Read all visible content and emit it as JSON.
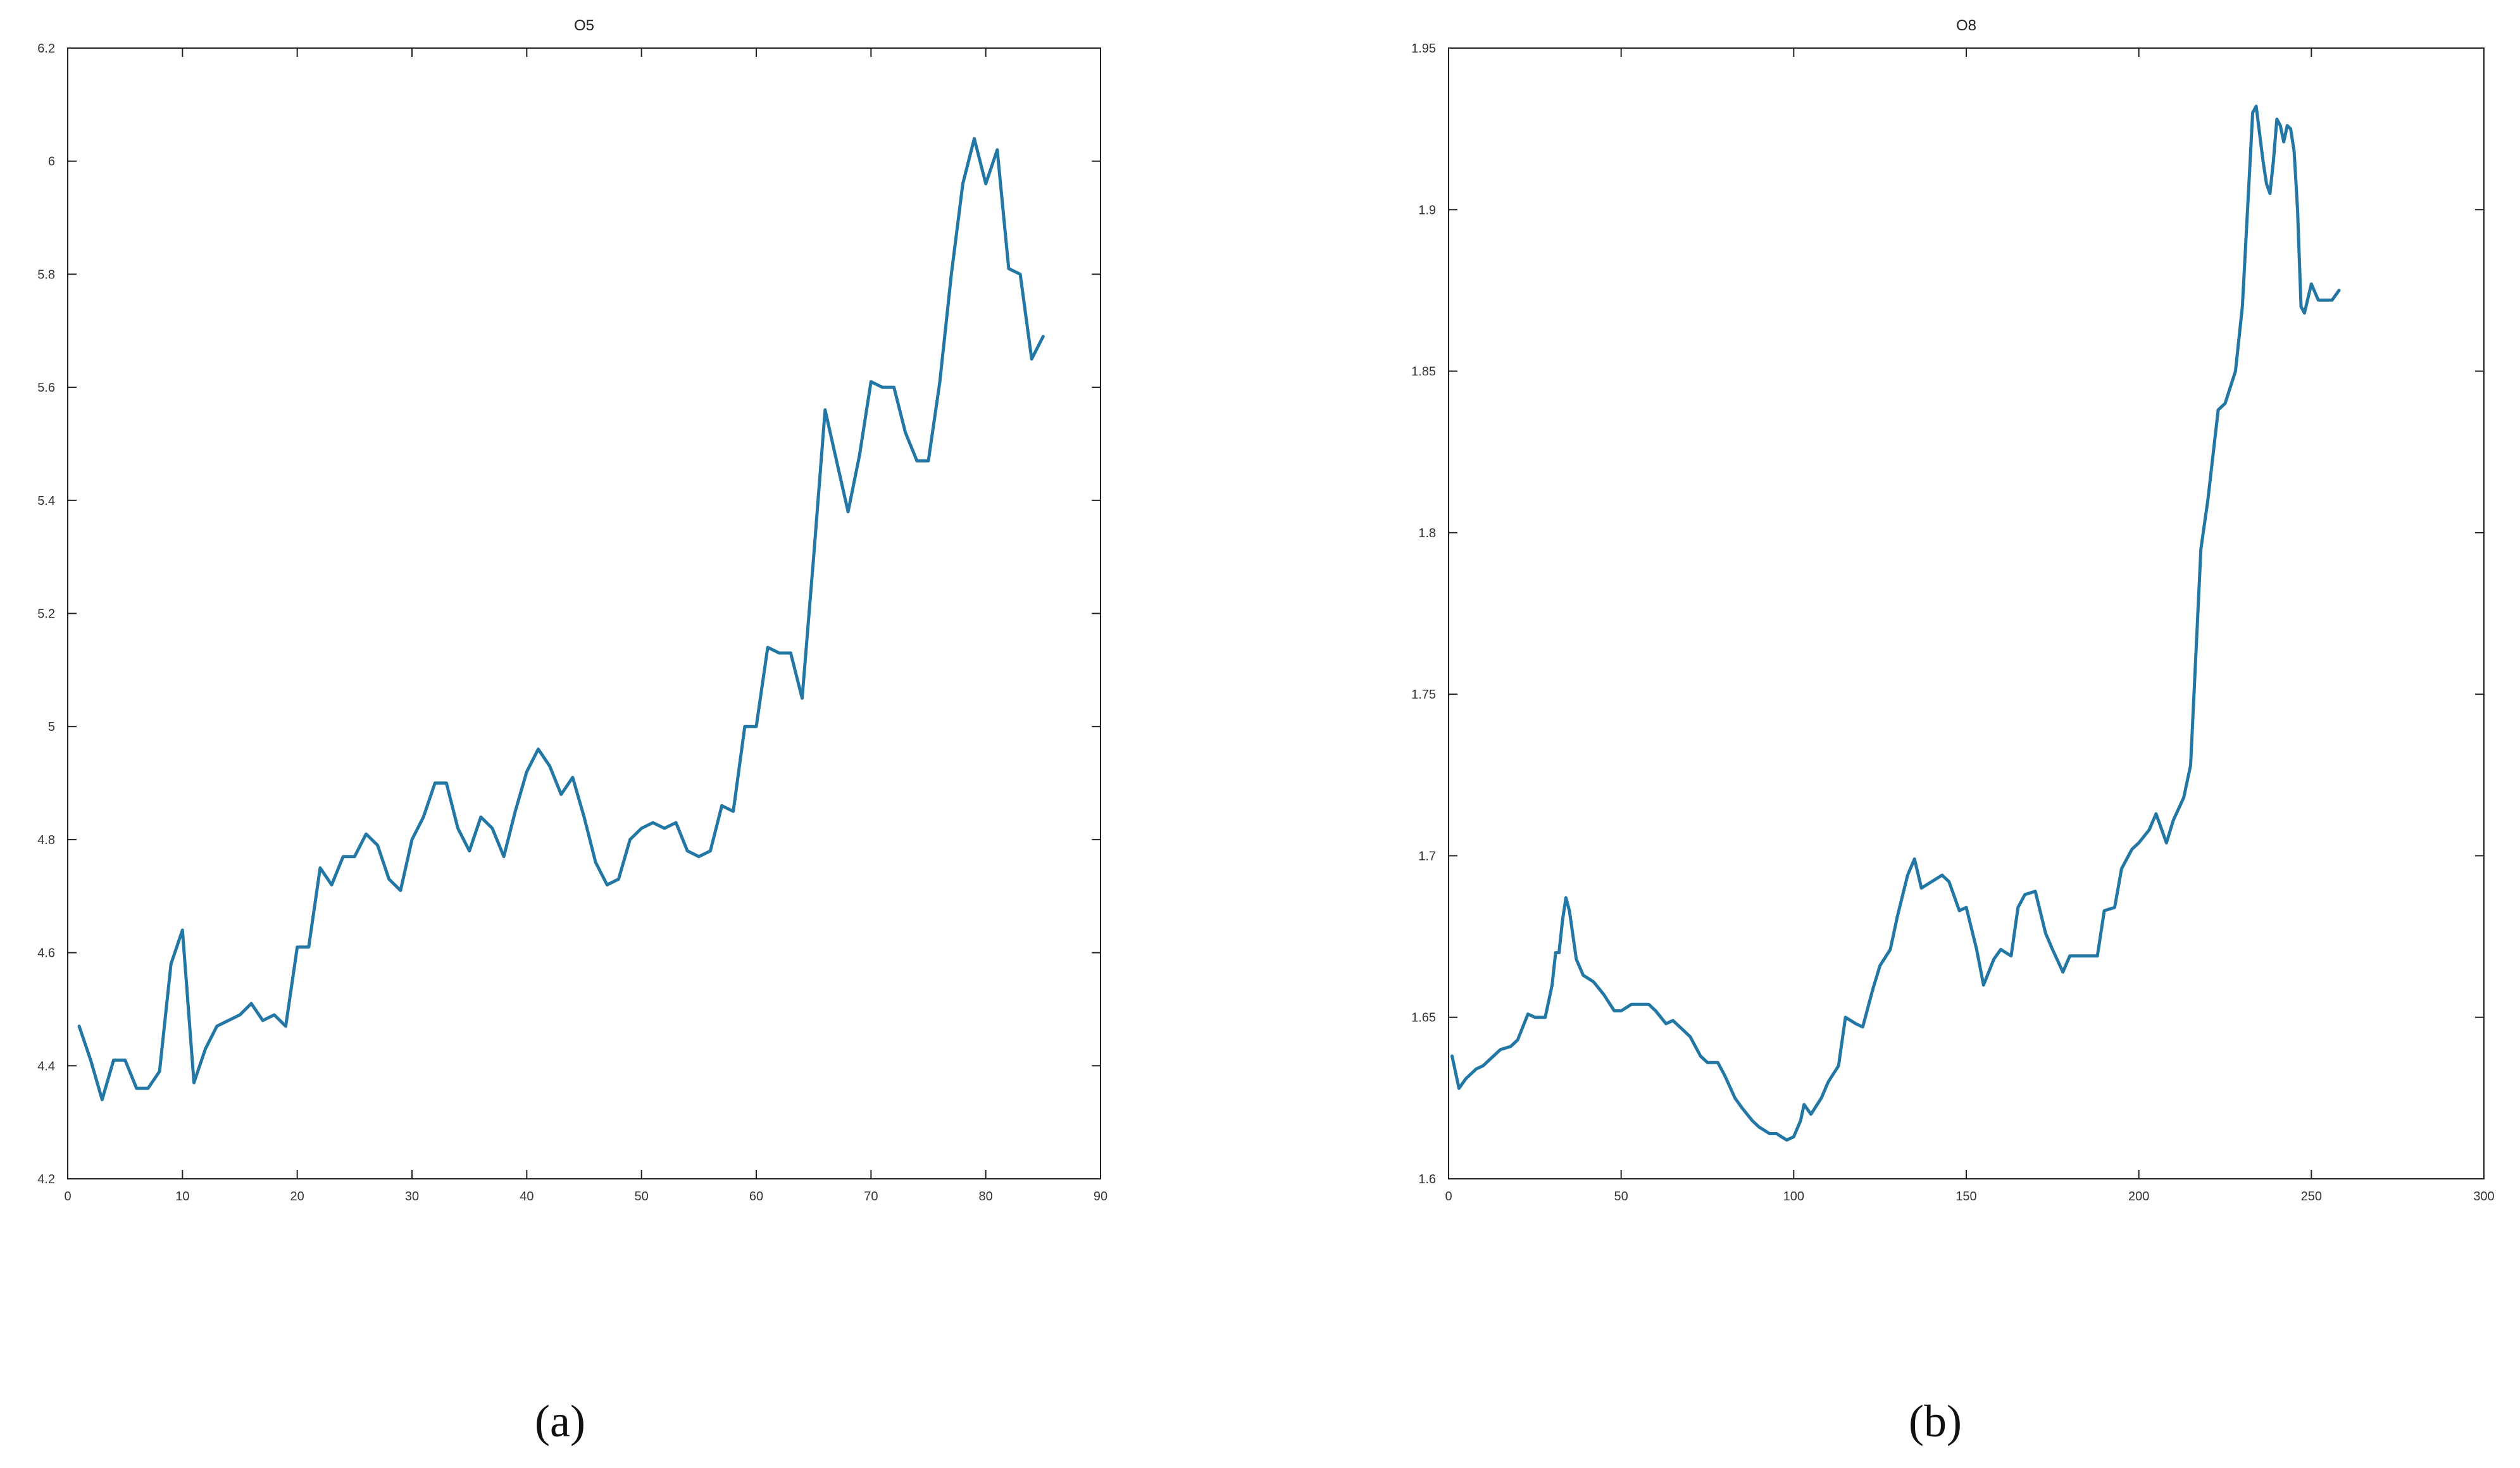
{
  "chart_data": [
    {
      "type": "line",
      "title": "O5",
      "xlabel": "",
      "ylabel": "",
      "xlim": [
        0,
        90
      ],
      "ylim": [
        4.2,
        6.2
      ],
      "x_ticks": [
        0,
        10,
        20,
        30,
        40,
        50,
        60,
        70,
        80,
        90
      ],
      "x_tick_labels": [
        "0",
        "10",
        "20",
        "30",
        "40",
        "50",
        "60",
        "70",
        "80",
        "90"
      ],
      "y_ticks": [
        4.2,
        4.4,
        4.6,
        4.8,
        5.0,
        5.2,
        5.4,
        5.6,
        5.8,
        6.0,
        6.2
      ],
      "y_tick_labels": [
        "4.2",
        "4.4",
        "4.6",
        "4.8",
        "5",
        "5.2",
        "5.4",
        "5.6",
        "5.8",
        "6",
        "6.2"
      ],
      "grid": false,
      "line_color": "#2377a4",
      "series": [
        {
          "x": [
            1,
            2,
            3,
            4,
            5,
            6,
            7,
            8,
            9,
            10,
            11,
            12,
            13,
            14,
            15,
            16,
            17,
            18,
            19,
            20,
            21,
            22,
            23,
            24,
            25,
            26,
            27,
            28,
            29,
            30,
            31,
            32,
            33,
            34,
            35,
            36,
            37,
            38,
            39,
            40,
            41,
            42,
            43,
            44,
            45,
            46,
            47,
            48,
            49,
            50,
            51,
            52,
            53,
            54,
            55,
            56,
            57,
            58,
            59,
            60,
            61,
            62,
            63,
            64,
            65,
            66,
            67,
            68,
            69,
            70,
            71,
            72,
            73,
            74,
            75,
            76,
            77,
            78,
            79,
            80,
            81,
            82,
            83,
            84,
            85
          ],
          "y": [
            4.47,
            4.41,
            4.34,
            4.41,
            4.41,
            4.36,
            4.36,
            4.39,
            4.58,
            4.64,
            4.37,
            4.43,
            4.47,
            4.48,
            4.49,
            4.51,
            4.48,
            4.49,
            4.47,
            4.61,
            4.61,
            4.75,
            4.72,
            4.77,
            4.77,
            4.81,
            4.79,
            4.73,
            4.71,
            4.8,
            4.84,
            4.9,
            4.9,
            4.82,
            4.78,
            4.84,
            4.82,
            4.77,
            4.85,
            4.92,
            4.96,
            4.93,
            4.88,
            4.91,
            4.84,
            4.76,
            4.72,
            4.73,
            4.8,
            4.82,
            4.83,
            4.82,
            4.83,
            4.78,
            4.77,
            4.78,
            4.86,
            4.85,
            5.0,
            5.0,
            5.14,
            5.13,
            5.13,
            5.05,
            5.3,
            5.56,
            5.47,
            5.38,
            5.48,
            5.61,
            5.6,
            5.6,
            5.52,
            5.47,
            5.47,
            5.61,
            5.8,
            5.96,
            6.04,
            5.96,
            6.02,
            5.81,
            5.8,
            5.65,
            5.69
          ]
        }
      ],
      "caption": "(a)"
    },
    {
      "type": "line",
      "title": "O8",
      "xlabel": "",
      "ylabel": "",
      "xlim": [
        0,
        300
      ],
      "ylim": [
        1.6,
        1.95
      ],
      "x_ticks": [
        0,
        50,
        100,
        150,
        200,
        250,
        300
      ],
      "x_tick_labels": [
        "0",
        "50",
        "100",
        "150",
        "200",
        "250",
        "300"
      ],
      "y_ticks": [
        1.6,
        1.65,
        1.7,
        1.75,
        1.8,
        1.85,
        1.9,
        1.95
      ],
      "y_tick_labels": [
        "1.6",
        "1.65",
        "1.7",
        "1.75",
        "1.8",
        "1.85",
        "1.9",
        "1.95"
      ],
      "grid": false,
      "line_color": "#2377a4",
      "series": [
        {
          "x": [
            1,
            3,
            5,
            8,
            10,
            13,
            15,
            18,
            20,
            23,
            25,
            28,
            30,
            31,
            32,
            33,
            34,
            35,
            37,
            39,
            42,
            45,
            48,
            50,
            53,
            55,
            58,
            60,
            63,
            65,
            68,
            70,
            73,
            75,
            78,
            80,
            83,
            85,
            88,
            90,
            93,
            95,
            98,
            100,
            102,
            103,
            105,
            108,
            110,
            113,
            115,
            118,
            120,
            123,
            125,
            128,
            130,
            133,
            135,
            137,
            140,
            143,
            145,
            148,
            150,
            153,
            155,
            158,
            160,
            163,
            165,
            167,
            170,
            173,
            175,
            178,
            180,
            183,
            185,
            188,
            190,
            193,
            195,
            198,
            200,
            203,
            205,
            208,
            210,
            213,
            215,
            218,
            220,
            223,
            225,
            228,
            230,
            232,
            233,
            234,
            236,
            237,
            238,
            239,
            240,
            241,
            242,
            243,
            244,
            245,
            246,
            247,
            248,
            250,
            252,
            254,
            256,
            258
          ],
          "y": [
            1.638,
            1.628,
            1.631,
            1.634,
            1.635,
            1.638,
            1.64,
            1.641,
            1.643,
            1.651,
            1.65,
            1.65,
            1.66,
            1.67,
            1.67,
            1.68,
            1.687,
            1.683,
            1.668,
            1.663,
            1.661,
            1.657,
            1.652,
            1.652,
            1.654,
            1.654,
            1.654,
            1.652,
            1.648,
            1.649,
            1.646,
            1.644,
            1.638,
            1.636,
            1.636,
            1.632,
            1.625,
            1.622,
            1.618,
            1.616,
            1.614,
            1.614,
            1.612,
            1.613,
            1.618,
            1.623,
            1.62,
            1.625,
            1.63,
            1.635,
            1.65,
            1.648,
            1.647,
            1.659,
            1.666,
            1.671,
            1.681,
            1.694,
            1.699,
            1.69,
            1.692,
            1.694,
            1.692,
            1.683,
            1.684,
            1.671,
            1.66,
            1.668,
            1.671,
            1.669,
            1.684,
            1.688,
            1.689,
            1.676,
            1.671,
            1.664,
            1.669,
            1.669,
            1.669,
            1.669,
            1.683,
            1.684,
            1.696,
            1.702,
            1.704,
            1.708,
            1.713,
            1.704,
            1.711,
            1.718,
            1.728,
            1.795,
            1.81,
            1.838,
            1.84,
            1.85,
            1.87,
            1.91,
            1.93,
            1.932,
            1.915,
            1.908,
            1.905,
            1.915,
            1.928,
            1.926,
            1.921,
            1.926,
            1.925,
            1.918,
            1.9,
            1.87,
            1.868,
            1.877,
            1.872,
            1.872,
            1.872,
            1.875
          ]
        }
      ],
      "caption": "(b)"
    }
  ]
}
